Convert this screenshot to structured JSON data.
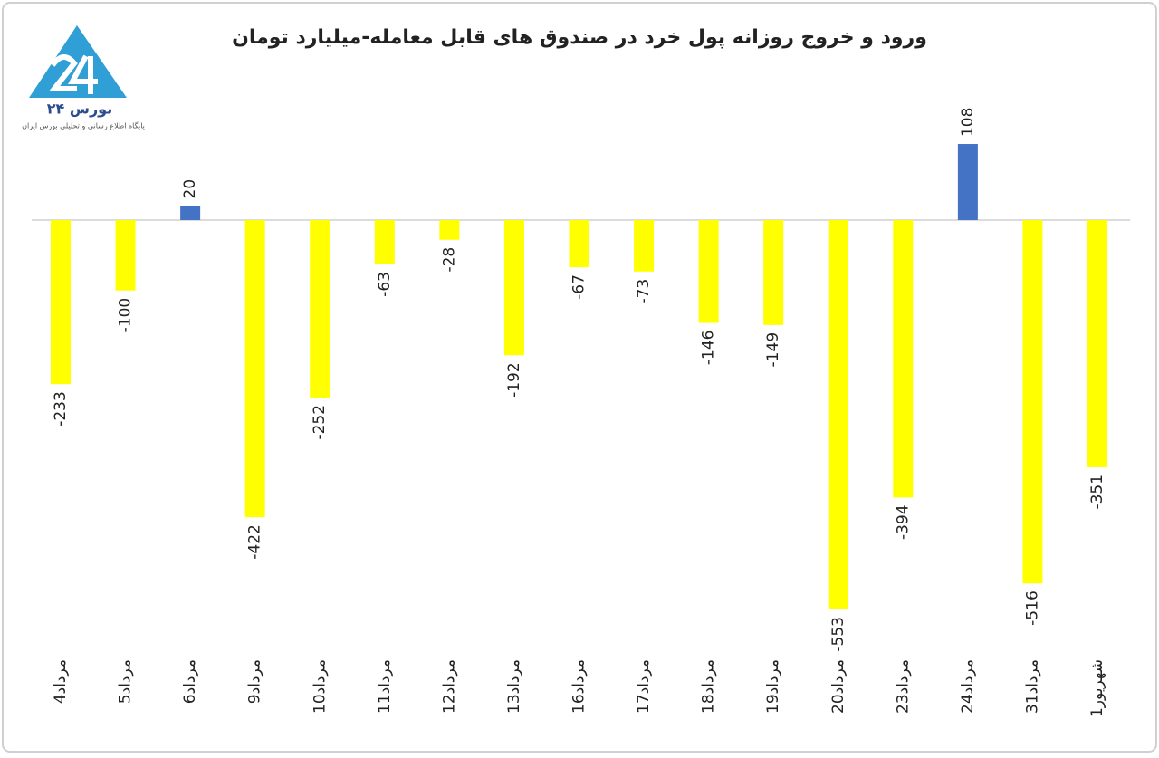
{
  "chart_data": {
    "type": "bar",
    "title": "ورود و خروج روزانه پول خرد در صندوق های قابل معامله-میلیارد تومان",
    "categories": [
      "4مرداد",
      "5مرداد",
      "6مرداد",
      "9مرداد",
      "10مرداد",
      "11مرداد",
      "12مرداد",
      "13مرداد",
      "16مرداد",
      "17مرداد",
      "18مرداد",
      "19مرداد",
      "20مرداد",
      "23مرداد",
      "24مرداد",
      "31مرداد",
      "1شهریور"
    ],
    "values": [
      -233,
      -100,
      20,
      -422,
      -252,
      -63,
      -28,
      -192,
      -67,
      -73,
      -146,
      -149,
      -553,
      -394,
      108,
      -516,
      -351
    ],
    "positive_color": "#4472c4",
    "negative_color": "#ffff00"
  },
  "logo": {
    "name": "بورس ۲۴",
    "tagline": "پایگاه اطلاع رسانی و تحلیلی بورس ایران"
  }
}
